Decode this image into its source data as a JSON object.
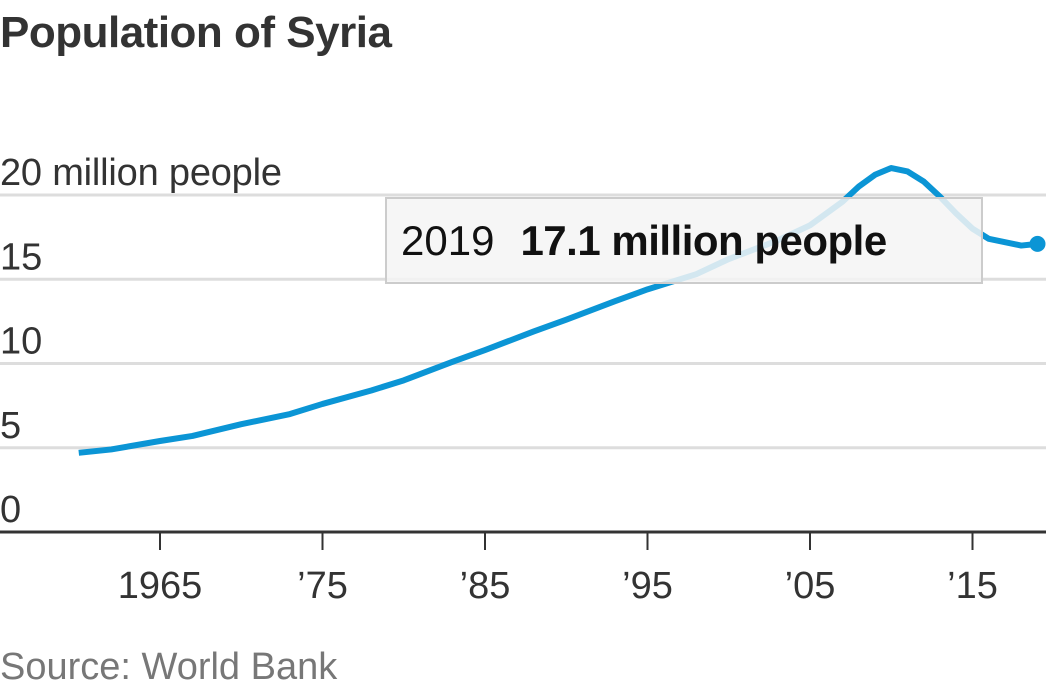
{
  "chart_data": {
    "type": "line",
    "title": "Population of Syria",
    "source": "Source: World Bank",
    "ylabel": "20 million people",
    "ylim": [
      0,
      20
    ],
    "yticks": [
      0,
      5,
      10,
      15,
      20
    ],
    "ytick_labels": [
      "0",
      "5",
      "10",
      "15",
      "20 million people"
    ],
    "xlim": [
      1960,
      2019
    ],
    "xticks": [
      1965,
      1975,
      1985,
      1995,
      2005,
      2015
    ],
    "xtick_labels": [
      "1965",
      "’75",
      "’85",
      "’95",
      "’05",
      "’15"
    ],
    "grid": true,
    "color": "#0b95d5",
    "x": [
      1960,
      1962,
      1965,
      1967,
      1970,
      1973,
      1975,
      1978,
      1980,
      1983,
      1985,
      1988,
      1990,
      1993,
      1995,
      1998,
      2000,
      2003,
      2005,
      2007,
      2008,
      2009,
      2010,
      2011,
      2012,
      2013,
      2014,
      2015,
      2016,
      2017,
      2018,
      2019
    ],
    "values": [
      4.7,
      4.9,
      5.4,
      5.7,
      6.4,
      7.0,
      7.6,
      8.4,
      9.0,
      10.1,
      10.8,
      11.9,
      12.6,
      13.7,
      14.4,
      15.3,
      16.2,
      17.3,
      18.2,
      19.6,
      20.5,
      21.2,
      21.6,
      21.4,
      20.8,
      19.9,
      18.9,
      18.0,
      17.4,
      17.2,
      17.0,
      17.1
    ],
    "annotation": {
      "year": "2019",
      "value": "17.1 million people"
    }
  }
}
